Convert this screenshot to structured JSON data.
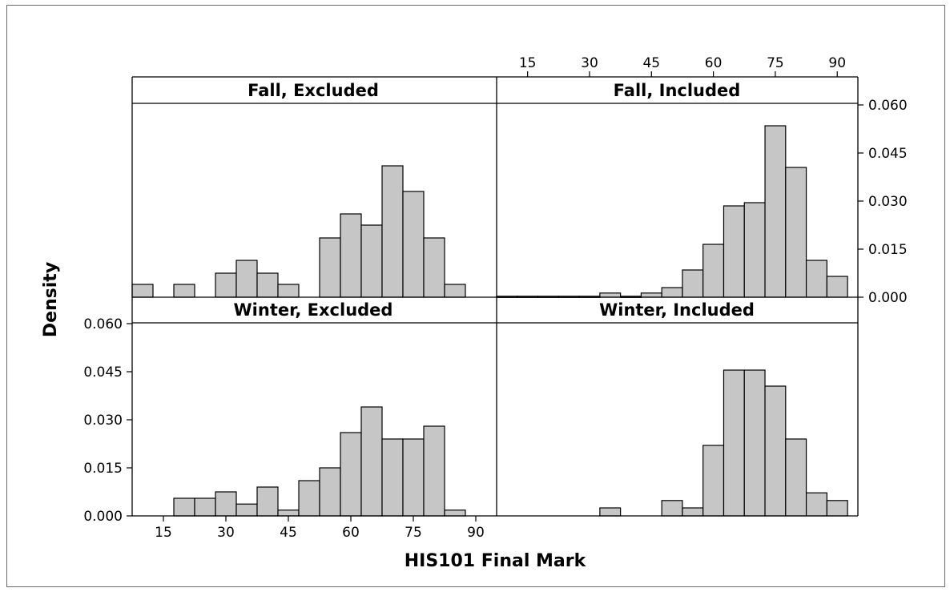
{
  "chart_data": {
    "type": "bar",
    "subtype": "paneled histogram",
    "xlabel": "HIS101 Final Mark",
    "ylabel": "Density",
    "xlim": [
      7.5,
      95
    ],
    "ylim": [
      0,
      0.06
    ],
    "x_ticks": [
      15,
      30,
      45,
      60,
      75,
      90
    ],
    "y_ticks": [
      "0.000",
      "0.015",
      "0.030",
      "0.045",
      "0.060"
    ],
    "bin_width": 5,
    "grid": false,
    "bar_color": "#c6c6c6",
    "panels": [
      {
        "title": "Fall, Excluded",
        "bins": [
          {
            "x": 10,
            "density": 0.004
          },
          {
            "x": 20,
            "density": 0.004
          },
          {
            "x": 30,
            "density": 0.0075
          },
          {
            "x": 35,
            "density": 0.0115
          },
          {
            "x": 40,
            "density": 0.0075
          },
          {
            "x": 45,
            "density": 0.004
          },
          {
            "x": 55,
            "density": 0.0185
          },
          {
            "x": 60,
            "density": 0.026
          },
          {
            "x": 65,
            "density": 0.0225
          },
          {
            "x": 70,
            "density": 0.041
          },
          {
            "x": 75,
            "density": 0.033
          },
          {
            "x": 80,
            "density": 0.0185
          },
          {
            "x": 85,
            "density": 0.004
          }
        ]
      },
      {
        "title": "Fall, Included",
        "bins": [
          {
            "x": 10,
            "density": 0.0003
          },
          {
            "x": 15,
            "density": 0.0003
          },
          {
            "x": 20,
            "density": 0.0003
          },
          {
            "x": 25,
            "density": 0.0003
          },
          {
            "x": 30,
            "density": 0.0003
          },
          {
            "x": 35,
            "density": 0.0013
          },
          {
            "x": 40,
            "density": 0.0003
          },
          {
            "x": 45,
            "density": 0.0013
          },
          {
            "x": 50,
            "density": 0.003
          },
          {
            "x": 55,
            "density": 0.0085
          },
          {
            "x": 60,
            "density": 0.0165
          },
          {
            "x": 65,
            "density": 0.0285
          },
          {
            "x": 70,
            "density": 0.0295
          },
          {
            "x": 75,
            "density": 0.0535
          },
          {
            "x": 80,
            "density": 0.0405
          },
          {
            "x": 85,
            "density": 0.0115
          },
          {
            "x": 90,
            "density": 0.0065
          }
        ]
      },
      {
        "title": "Winter, Excluded",
        "bins": [
          {
            "x": 20,
            "density": 0.0055
          },
          {
            "x": 25,
            "density": 0.0055
          },
          {
            "x": 30,
            "density": 0.0075
          },
          {
            "x": 35,
            "density": 0.0037
          },
          {
            "x": 40,
            "density": 0.009
          },
          {
            "x": 45,
            "density": 0.0018
          },
          {
            "x": 50,
            "density": 0.011
          },
          {
            "x": 55,
            "density": 0.015
          },
          {
            "x": 60,
            "density": 0.026
          },
          {
            "x": 65,
            "density": 0.034
          },
          {
            "x": 70,
            "density": 0.024
          },
          {
            "x": 75,
            "density": 0.024
          },
          {
            "x": 80,
            "density": 0.028
          },
          {
            "x": 85,
            "density": 0.0018
          }
        ]
      },
      {
        "title": "Winter, Included",
        "bins": [
          {
            "x": 35,
            "density": 0.0025
          },
          {
            "x": 50,
            "density": 0.0048
          },
          {
            "x": 55,
            "density": 0.0025
          },
          {
            "x": 60,
            "density": 0.022
          },
          {
            "x": 65,
            "density": 0.0455
          },
          {
            "x": 70,
            "density": 0.0455
          },
          {
            "x": 75,
            "density": 0.0405
          },
          {
            "x": 80,
            "density": 0.024
          },
          {
            "x": 85,
            "density": 0.0072
          },
          {
            "x": 90,
            "density": 0.0048
          }
        ]
      }
    ]
  }
}
